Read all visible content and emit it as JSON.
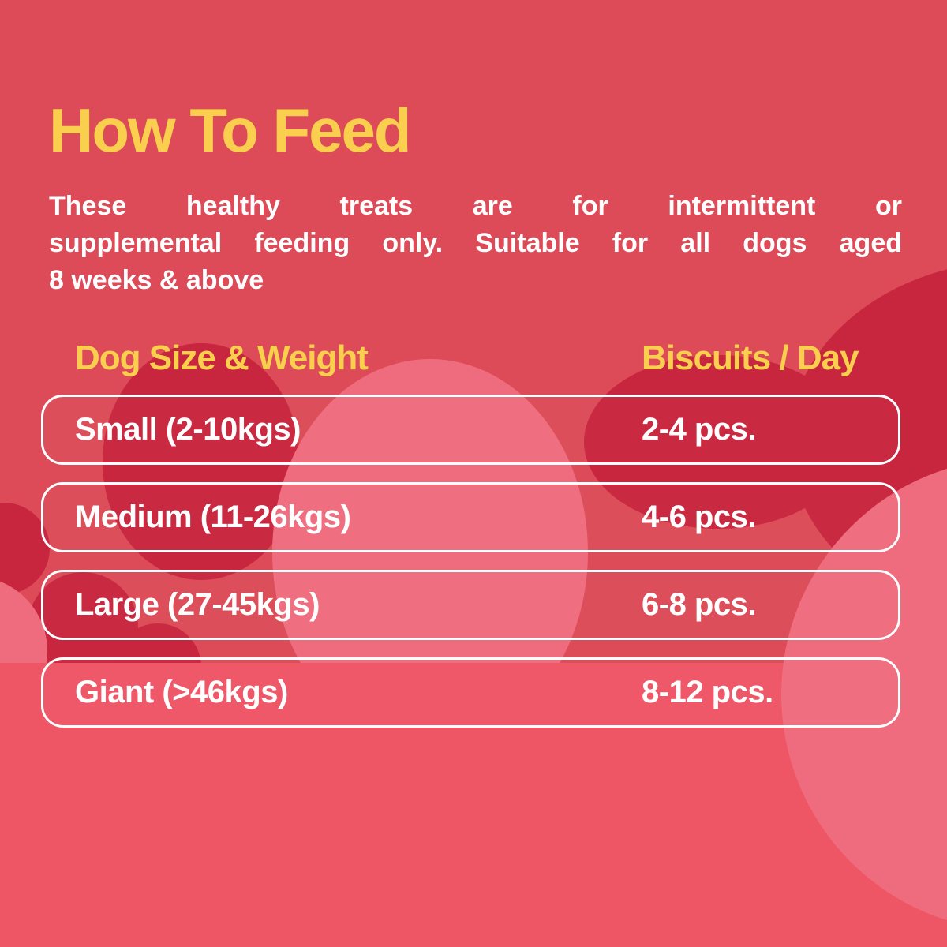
{
  "page": {
    "title": "How To Feed",
    "description_lines": [
      "These healthy treats are for intermittent or",
      "supplemental feeding only. Suitable for all dogs aged",
      "8 weeks & above"
    ]
  },
  "table": {
    "col1_header": "Dog Size & Weight",
    "col2_header": "Biscuits / Day",
    "rows": [
      {
        "size": "Small (2-10kgs)",
        "qty": "2-4 pcs."
      },
      {
        "size": "Medium (11-26kgs)",
        "qty": "4-6 pcs."
      },
      {
        "size": "Large (27-45kgs)",
        "qty": "6-8 pcs."
      },
      {
        "size": "Giant (>46kgs)",
        "qty": "8-12 pcs."
      }
    ]
  },
  "colors": {
    "background_red": "#dc4b57",
    "dark_cloud": "#c8253e",
    "light_cloud": "#ef6c7e",
    "bottom_pink": "#ee5565",
    "heading_yellow": "#f9cf4d",
    "text_white": "#ffffff",
    "row_border": "#ffffff"
  }
}
